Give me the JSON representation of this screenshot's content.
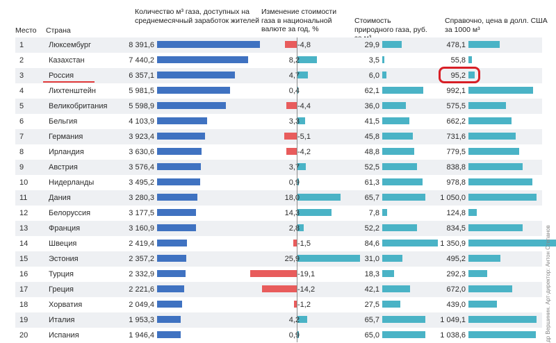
{
  "chart_data": {
    "type": "table",
    "headers": {
      "rank": "Место",
      "country": "Страна",
      "quantity": "Количество м³ газа, доступных на среднемесячный заработок жителей",
      "change": "Изменение стоимости газа в национальной валюте за год, %",
      "price_rub": "Стоимость природного газа, руб. за м³",
      "price_usd": "Справочно, цена в долл. США за 1000 м³"
    },
    "rows": [
      {
        "rank": "1",
        "country": "Люксембург",
        "quantity": 8391.6,
        "quantity_label": "8 391,6",
        "change": -4.8,
        "change_label": "-4,8",
        "price_rub": 29.9,
        "price_rub_label": "29,9",
        "price_usd": 478.1,
        "price_usd_label": "478,1"
      },
      {
        "rank": "2",
        "country": "Казахстан",
        "quantity": 7440.2,
        "quantity_label": "7 440,2",
        "change": 8.2,
        "change_label": "8,2",
        "price_rub": 3.5,
        "price_rub_label": "3,5",
        "price_usd": 55.8,
        "price_usd_label": "55,8"
      },
      {
        "rank": "3",
        "country": "Россия",
        "quantity": 6357.1,
        "quantity_label": "6 357,1",
        "change": 4.7,
        "change_label": "4,7",
        "price_rub": 6.0,
        "price_rub_label": "6,0",
        "price_usd": 95.2,
        "price_usd_label": "95,2"
      },
      {
        "rank": "4",
        "country": "Лихтенштейн",
        "quantity": 5981.5,
        "quantity_label": "5 981,5",
        "change": 0.4,
        "change_label": "0,4",
        "price_rub": 62.1,
        "price_rub_label": "62,1",
        "price_usd": 992.1,
        "price_usd_label": "992,1"
      },
      {
        "rank": "5",
        "country": "Великобритания",
        "quantity": 5598.9,
        "quantity_label": "5 598,9",
        "change": -4.4,
        "change_label": "-4,4",
        "price_rub": 36.0,
        "price_rub_label": "36,0",
        "price_usd": 575.5,
        "price_usd_label": "575,5"
      },
      {
        "rank": "6",
        "country": "Бельгия",
        "quantity": 4103.9,
        "quantity_label": "4 103,9",
        "change": 3.3,
        "change_label": "3,3",
        "price_rub": 41.5,
        "price_rub_label": "41,5",
        "price_usd": 662.2,
        "price_usd_label": "662,2"
      },
      {
        "rank": "7",
        "country": "Германия",
        "quantity": 3923.4,
        "quantity_label": "3 923,4",
        "change": -5.1,
        "change_label": "-5,1",
        "price_rub": 45.8,
        "price_rub_label": "45,8",
        "price_usd": 731.6,
        "price_usd_label": "731,6"
      },
      {
        "rank": "8",
        "country": "Ирландия",
        "quantity": 3630.6,
        "quantity_label": "3 630,6",
        "change": -4.2,
        "change_label": "-4,2",
        "price_rub": 48.8,
        "price_rub_label": "48,8",
        "price_usd": 779.5,
        "price_usd_label": "779,5"
      },
      {
        "rank": "9",
        "country": "Австрия",
        "quantity": 3576.4,
        "quantity_label": "3 576,4",
        "change": 3.7,
        "change_label": "3,7",
        "price_rub": 52.5,
        "price_rub_label": "52,5",
        "price_usd": 838.8,
        "price_usd_label": "838,8"
      },
      {
        "rank": "10",
        "country": "Нидерланды",
        "quantity": 3495.2,
        "quantity_label": "3 495,2",
        "change": 0.9,
        "change_label": "0,9",
        "price_rub": 61.3,
        "price_rub_label": "61,3",
        "price_usd": 978.8,
        "price_usd_label": "978,8"
      },
      {
        "rank": "11",
        "country": "Дания",
        "quantity": 3280.3,
        "quantity_label": "3 280,3",
        "change": 18.0,
        "change_label": "18,0",
        "price_rub": 65.7,
        "price_rub_label": "65,7",
        "price_usd": 1050.0,
        "price_usd_label": "1 050,0"
      },
      {
        "rank": "12",
        "country": "Белоруссия",
        "quantity": 3177.5,
        "quantity_label": "3 177,5",
        "change": 14.3,
        "change_label": "14,3",
        "price_rub": 7.8,
        "price_rub_label": "7,8",
        "price_usd": 124.8,
        "price_usd_label": "124,8"
      },
      {
        "rank": "13",
        "country": "Франция",
        "quantity": 3160.9,
        "quantity_label": "3 160,9",
        "change": 2.8,
        "change_label": "2,8",
        "price_rub": 52.2,
        "price_rub_label": "52,2",
        "price_usd": 834.5,
        "price_usd_label": "834,5"
      },
      {
        "rank": "14",
        "country": "Швеция",
        "quantity": 2419.4,
        "quantity_label": "2 419,4",
        "change": -1.5,
        "change_label": "-1,5",
        "price_rub": 84.6,
        "price_rub_label": "84,6",
        "price_usd": 1350.9,
        "price_usd_label": "1 350,9"
      },
      {
        "rank": "15",
        "country": "Эстония",
        "quantity": 2357.2,
        "quantity_label": "2 357,2",
        "change": 25.9,
        "change_label": "25,9",
        "price_rub": 31.0,
        "price_rub_label": "31,0",
        "price_usd": 495.2,
        "price_usd_label": "495,2"
      },
      {
        "rank": "16",
        "country": "Турция",
        "quantity": 2332.9,
        "quantity_label": "2 332,9",
        "change": -19.1,
        "change_label": "-19,1",
        "price_rub": 18.3,
        "price_rub_label": "18,3",
        "price_usd": 292.3,
        "price_usd_label": "292,3"
      },
      {
        "rank": "17",
        "country": "Греция",
        "quantity": 2221.6,
        "quantity_label": "2 221,6",
        "change": -14.2,
        "change_label": "-14,2",
        "price_rub": 42.1,
        "price_rub_label": "42,1",
        "price_usd": 672.0,
        "price_usd_label": "672,0"
      },
      {
        "rank": "18",
        "country": "Хорватия",
        "quantity": 2049.4,
        "quantity_label": "2 049,4",
        "change": -1.2,
        "change_label": "-1,2",
        "price_rub": 27.5,
        "price_rub_label": "27,5",
        "price_usd": 439.0,
        "price_usd_label": "439,0"
      },
      {
        "rank": "19",
        "country": "Италия",
        "quantity": 1953.3,
        "quantity_label": "1 953,3",
        "change": 4.2,
        "change_label": "4,2",
        "price_rub": 65.7,
        "price_rub_label": "65,7",
        "price_usd": 1049.1,
        "price_usd_label": "1 049,1"
      },
      {
        "rank": "20",
        "country": "Испания",
        "quantity": 1946.4,
        "quantity_label": "1 946,4",
        "change": 0.9,
        "change_label": "0,9",
        "price_rub": 65.0,
        "price_rub_label": "65,0",
        "price_usd": 1038.6,
        "price_usd_label": "1 038,6"
      }
    ],
    "highlight_row": "Россия",
    "credit": "др Вершинин. Арт-директор: Антон Степанов"
  },
  "colors": {
    "quantity_bar": "#3f72c1",
    "negative_change": "#e85c5c",
    "positive_change": "#4ab3c6",
    "price_bar": "#4ab3c6",
    "highlight": "#d81f26",
    "row_alt": "#eef0f3"
  }
}
